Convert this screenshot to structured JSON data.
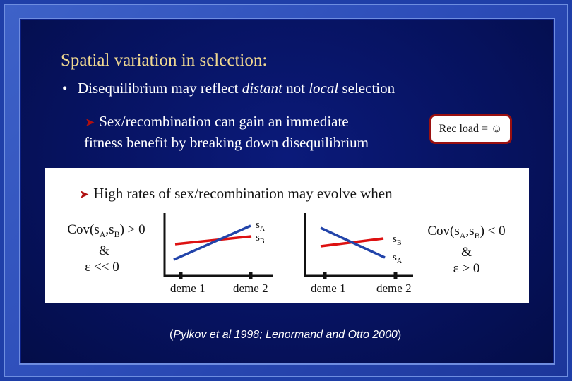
{
  "title": "Spatial variation in selection:",
  "bullet": {
    "marker": "•",
    "text_before": "Disequilibrium may reflect ",
    "italic_1": "distant",
    "text_middle": " not ",
    "italic_2": "local",
    "text_after": " selection"
  },
  "sub_point": {
    "line_1": "Sex/recombination can gain an immediate",
    "line_2": "fitness benefit by breaking down disequilibrium"
  },
  "rec_load": {
    "label": "Rec load = ☺"
  },
  "panel": {
    "headline": "High rates of sex/recombination may evolve when",
    "left_condition": {
      "cov_prefix": "Cov(s",
      "sub_a": "A",
      "comma_s": ",s",
      "sub_b": "B",
      "cov_suffix": ") > 0",
      "amp": "&",
      "epsilon": "ε << 0"
    },
    "right_condition": {
      "cov_prefix": "Cov(s",
      "sub_a": "A",
      "comma_s": ",s",
      "sub_b": "B",
      "cov_suffix": ") < 0",
      "amp": "&",
      "epsilon": "ε > 0"
    },
    "left_graph": {
      "deme_1": "deme 1",
      "deme_2": "deme 2",
      "label_a_s": "s",
      "label_a_sub": "A",
      "label_b_s": "s",
      "label_b_sub": "B"
    },
    "right_graph": {
      "deme_1": "deme 1",
      "deme_2": "deme 2",
      "label_b_s": "s",
      "label_b_sub": "B",
      "label_a_s": "s",
      "label_a_sub": "A"
    },
    "colors": {
      "s_A_line": "#2244aa",
      "s_B_line": "#dd1111"
    }
  },
  "citation": {
    "open": "(",
    "text": "Pylkov et al 1998; Lenormand and Otto 2000",
    "close": ")"
  }
}
